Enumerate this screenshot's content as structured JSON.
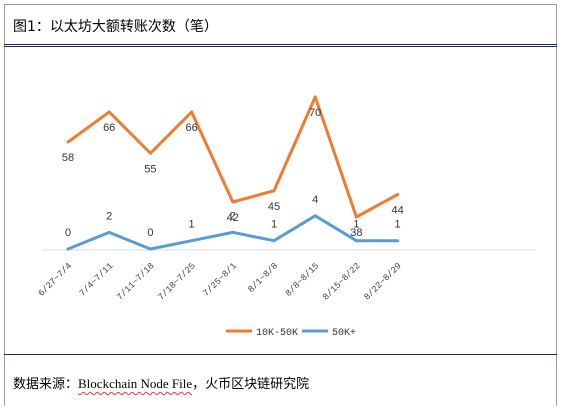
{
  "title": "图1：以太坊大额转账次数（笔）",
  "source": {
    "label": "数据来源：",
    "text_en": "Blockchain Node File",
    "text_cn": "，火币区块链研究院"
  },
  "colors": {
    "series1": "#ed7d31",
    "series2": "#5b9bd5",
    "frame_rule": "#1b2a55"
  },
  "chart_data": {
    "type": "line",
    "categories": [
      "6/27~7/4",
      "7/4~7/11",
      "7/11~7/18",
      "7/18~7/25",
      "7/25~8/1",
      "8/1~8/8",
      "8/8~8/15",
      "8/15~8/22",
      "8/22~8/29"
    ],
    "series": [
      {
        "name": "10K-50K",
        "values": [
          58,
          66,
          55,
          66,
          42,
          45,
          70,
          38,
          44
        ],
        "color": "#ed7d31"
      },
      {
        "name": "50K+",
        "values": [
          0,
          2,
          0,
          1,
          2,
          1,
          4,
          1,
          1
        ],
        "color": "#5b9bd5"
      }
    ],
    "grid": false,
    "legend": "bottom"
  }
}
